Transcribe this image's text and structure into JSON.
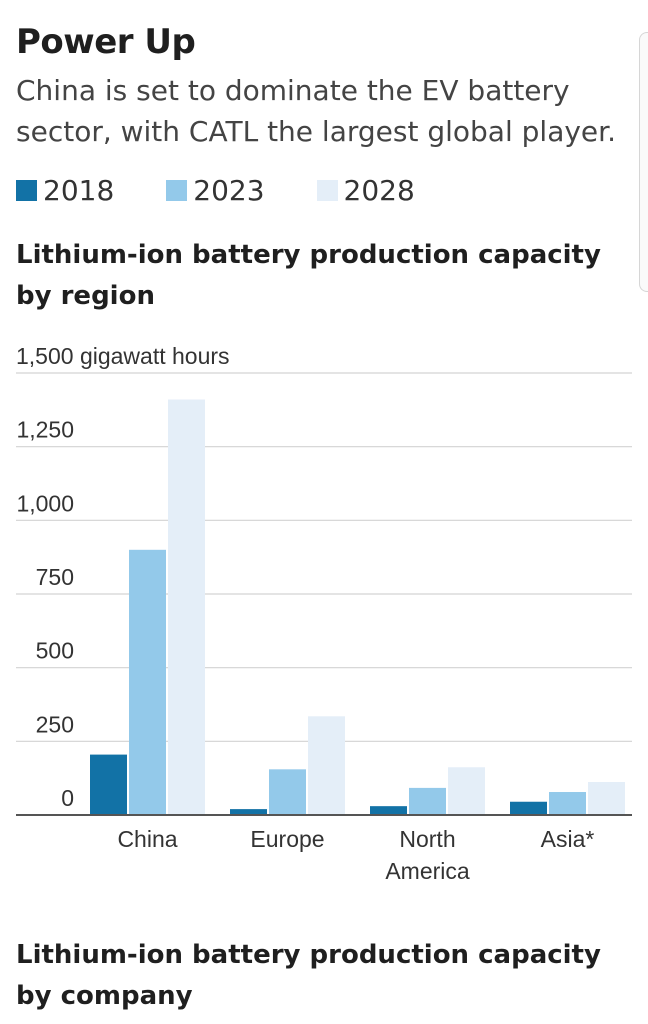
{
  "headline": "Power Up",
  "dek": "China is set to dominate the EV battery sector, with CATL the largest global player.",
  "legend": [
    {
      "label": "2018",
      "color": "#1272a6"
    },
    {
      "label": "2023",
      "color": "#93c9ea"
    },
    {
      "label": "2028",
      "color": "#e4eef8"
    }
  ],
  "chart_title": "Lithium-ion battery production capacity by region",
  "second_chart_title": "Lithium-ion battery production capacity by company",
  "chart_data": {
    "type": "bar",
    "title": "Lithium-ion battery production capacity by region",
    "unit_label": "1,500 gigawatt hours",
    "ylim": [
      0,
      1500
    ],
    "yticks": [
      0,
      250,
      500,
      750,
      1000,
      1250,
      1500
    ],
    "ytick_labels": [
      "0",
      "250",
      "500",
      "750",
      "1,000",
      "1,250",
      "1,500 gigawatt hours"
    ],
    "grid": true,
    "legend_position": "top-left",
    "categories": [
      "China",
      "Europe",
      "North\nAmerica",
      "Asia*"
    ],
    "series": [
      {
        "name": "2018",
        "color": "#1272a6",
        "values": [
          205,
          20,
          30,
          45
        ]
      },
      {
        "name": "2023",
        "color": "#93c9ea",
        "values": [
          900,
          155,
          92,
          78
        ]
      },
      {
        "name": "2028",
        "color": "#e4eef8",
        "values": [
          1410,
          335,
          162,
          112
        ]
      }
    ]
  }
}
